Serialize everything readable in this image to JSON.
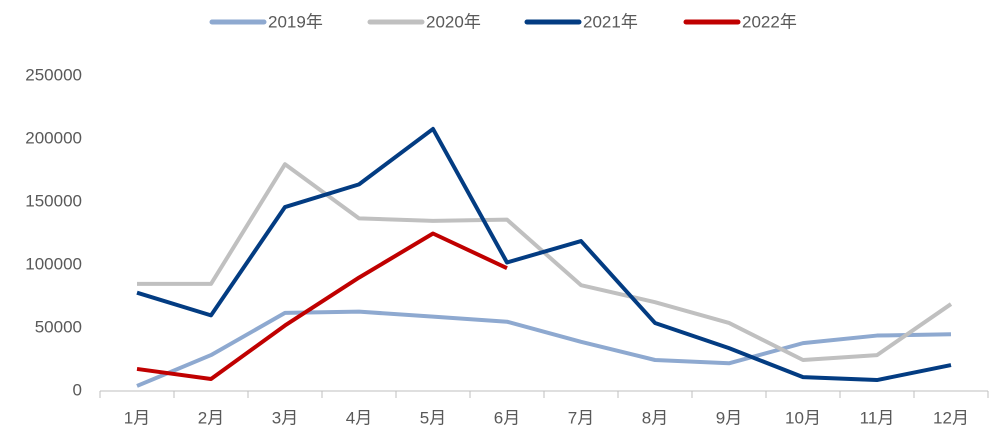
{
  "chart_data": {
    "type": "line",
    "categories": [
      "1月",
      "2月",
      "3月",
      "4月",
      "5月",
      "6月",
      "7月",
      "8月",
      "9月",
      "10月",
      "11月",
      "12月"
    ],
    "series": [
      {
        "name": "2019年",
        "color": "#8ea9d0",
        "values": [
          4000,
          28500,
          62000,
          63000,
          59000,
          55000,
          39000,
          24600,
          22000,
          38000,
          44000,
          45000
        ]
      },
      {
        "name": "2020年",
        "color": "#c0c0c0",
        "values": [
          85000,
          85000,
          180000,
          137000,
          135000,
          136000,
          84000,
          70500,
          54000,
          24600,
          28500,
          69000
        ]
      },
      {
        "name": "2021年",
        "color": "#033c82",
        "values": [
          78000,
          60000,
          146000,
          164000,
          208000,
          102000,
          119000,
          54000,
          34000,
          11000,
          8700,
          20600
        ]
      },
      {
        "name": "2022年",
        "color": "#c00000",
        "values": [
          17500,
          9500,
          52000,
          90000,
          125000,
          97500,
          null,
          null,
          null,
          null,
          null,
          null
        ]
      }
    ],
    "ylim": [
      0,
      250000
    ],
    "yticks": [
      0,
      50000,
      100000,
      150000,
      200000,
      250000
    ],
    "grid": false,
    "legend": "top"
  }
}
